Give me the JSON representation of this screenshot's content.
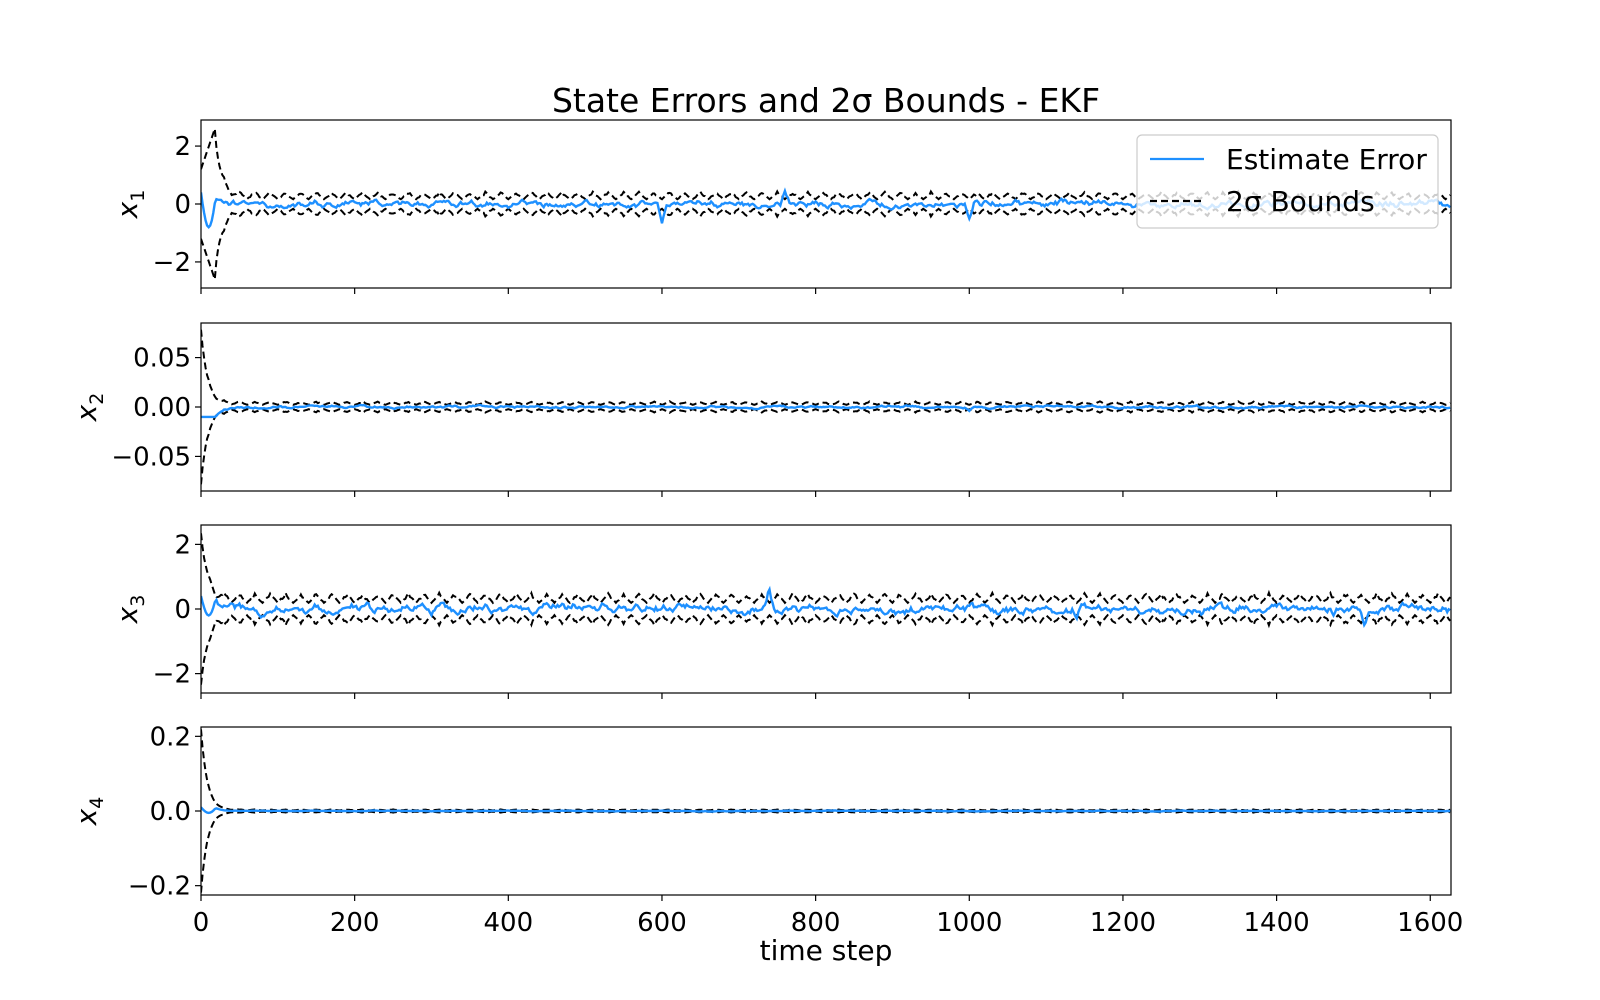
{
  "colors": {
    "estimate": "#1e90ff",
    "bounds": "#000000",
    "background": "#ffffff"
  },
  "legend": {
    "placement": "upper-right",
    "entries": [
      {
        "label": "Estimate Error",
        "style": "solid",
        "color": "#1e90ff"
      },
      {
        "label": "2σ Bounds",
        "style": "dashed",
        "color": "#000000"
      }
    ]
  },
  "chart_data": {
    "type": "line",
    "title": "State Errors and 2σ Bounds - EKF",
    "xlabel": "time step",
    "xlim": [
      0,
      1627
    ],
    "xticks": [
      0,
      200,
      400,
      600,
      800,
      1000,
      1200,
      1400,
      1600
    ],
    "grid": false,
    "subplots": [
      {
        "ylabel": "x1",
        "ylabel_base": "x",
        "ylabel_sub": "1",
        "ylim": [
          -2.9,
          2.9
        ],
        "yticks": [
          2,
          0,
          -2
        ],
        "ytick_labels": [
          "2",
          "0",
          "−2"
        ],
        "initial_bound": 1.2,
        "bound_peak": {
          "x": 18,
          "value": 2.6
        },
        "steady_bound": 0.3,
        "error_noise": 0.12,
        "series": [
          {
            "name": "Estimate Error",
            "start": 0.4,
            "dip": -0.8,
            "key_points": [
              [
                600,
                -0.6
              ],
              [
                1000,
                -0.55
              ],
              [
                760,
                0.35
              ]
            ]
          },
          {
            "name": "2σ Bounds",
            "upper": "+bound",
            "lower": "-bound"
          }
        ]
      },
      {
        "ylabel": "x2",
        "ylabel_base": "x",
        "ylabel_sub": "2",
        "ylim": [
          -0.085,
          0.085
        ],
        "yticks": [
          0.05,
          0.0,
          -0.05
        ],
        "ytick_labels": [
          "0.05",
          "0.00",
          "−0.05"
        ],
        "initial_bound": 0.08,
        "bound_peak": {
          "x": 0,
          "value": 0.08
        },
        "steady_bound": 0.004,
        "error_noise": 0.0012,
        "series": [
          {
            "name": "Estimate Error",
            "start": -0.01,
            "dip": -0.01,
            "key_points": [
              [
                1000,
                -0.003
              ]
            ]
          },
          {
            "name": "2σ Bounds",
            "upper": "+bound",
            "lower": "-bound"
          }
        ]
      },
      {
        "ylabel": "x3",
        "ylabel_base": "x",
        "ylabel_sub": "3",
        "ylim": [
          -2.6,
          2.6
        ],
        "yticks": [
          2,
          0,
          -2
        ],
        "ytick_labels": [
          "2",
          "0",
          "−2"
        ],
        "initial_bound": 2.5,
        "bound_peak": {
          "x": 0,
          "value": 2.5
        },
        "steady_bound": 0.35,
        "error_noise": 0.14,
        "series": [
          {
            "name": "Estimate Error",
            "start": 0.4,
            "dip": -0.2,
            "key_points": [
              [
                740,
                0.5
              ],
              [
                1515,
                -0.5
              ],
              [
                1140,
                -0.4
              ]
            ]
          },
          {
            "name": "2σ Bounds",
            "upper": "+bound",
            "lower": "-bound"
          }
        ]
      },
      {
        "ylabel": "x4",
        "ylabel_base": "x",
        "ylabel_sub": "4",
        "ylim": [
          -0.225,
          0.225
        ],
        "yticks": [
          0.2,
          0.0,
          -0.2
        ],
        "ytick_labels": [
          "0.2",
          "0.0",
          "−0.2"
        ],
        "initial_bound": 0.22,
        "bound_peak": {
          "x": 0,
          "value": 0.22
        },
        "steady_bound": 0.003,
        "error_noise": 0.0008,
        "series": [
          {
            "name": "Estimate Error",
            "start": 0.01,
            "dip": -0.005,
            "key_points": []
          },
          {
            "name": "2σ Bounds",
            "upper": "+bound",
            "lower": "-bound"
          }
        ]
      }
    ]
  }
}
